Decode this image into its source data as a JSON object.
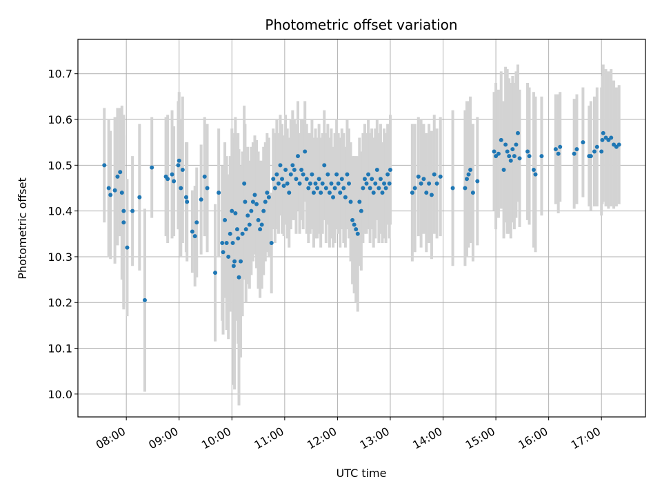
{
  "chart_data": {
    "type": "scatter",
    "title": "Photometric offset variation",
    "xlabel": "UTC time",
    "ylabel": "Photometric offset",
    "x_tick_labels": [
      "08:00",
      "09:00",
      "10:00",
      "11:00",
      "12:00",
      "13:00",
      "14:00",
      "15:00",
      "16:00",
      "17:00"
    ],
    "y_ticks": [
      10.0,
      10.1,
      10.2,
      10.3,
      10.4,
      10.5,
      10.6,
      10.7
    ],
    "y_tick_labels": [
      "10.0",
      "10.1",
      "10.2",
      "10.3",
      "10.4",
      "10.5",
      "10.6",
      "10.7"
    ],
    "xlim": [
      "07:05",
      "17:50"
    ],
    "ylim": [
      9.95,
      10.775
    ],
    "grid": true,
    "colors": {
      "points": "#1f77b4",
      "errorbars": "#d3d3d3",
      "grid": "#b0b0b0"
    },
    "series": [
      {
        "points": [
          {
            "x": "07:35",
            "y": 10.5,
            "err": 0.125
          },
          {
            "x": "07:40",
            "y": 10.45,
            "err": 0.15
          },
          {
            "x": "07:42",
            "y": 10.435,
            "err": 0.14
          },
          {
            "x": "07:47",
            "y": 10.445,
            "err": 0.16
          },
          {
            "x": "07:50",
            "y": 10.475,
            "err": 0.15
          },
          {
            "x": "07:53",
            "y": 10.485,
            "err": 0.14
          },
          {
            "x": "07:55",
            "y": 10.44,
            "err": 0.19
          },
          {
            "x": "07:57",
            "y": 10.4,
            "err": 0.21
          },
          {
            "x": "07:57",
            "y": 10.375,
            "err": 0.19
          },
          {
            "x": "08:01",
            "y": 10.32,
            "err": 0.15
          },
          {
            "x": "08:07",
            "y": 10.4,
            "err": 0.12
          },
          {
            "x": "08:15",
            "y": 10.43,
            "err": 0.16
          },
          {
            "x": "08:21",
            "y": 10.205,
            "err": 0.2
          },
          {
            "x": "08:29",
            "y": 10.495,
            "err": 0.11
          },
          {
            "x": "08:45",
            "y": 10.475,
            "err": 0.13
          },
          {
            "x": "08:47",
            "y": 10.47,
            "err": 0.14
          },
          {
            "x": "08:52",
            "y": 10.48,
            "err": 0.14
          },
          {
            "x": "08:54",
            "y": 10.465,
            "err": 0.12
          },
          {
            "x": "08:59",
            "y": 10.5,
            "err": 0.14
          },
          {
            "x": "09:00",
            "y": 10.51,
            "err": 0.15
          },
          {
            "x": "09:02",
            "y": 10.45,
            "err": 0.15
          },
          {
            "x": "09:04",
            "y": 10.49,
            "err": 0.16
          },
          {
            "x": "09:08",
            "y": 10.43,
            "err": 0.12
          },
          {
            "x": "09:09",
            "y": 10.42,
            "err": 0.13
          },
          {
            "x": "09:15",
            "y": 10.355,
            "err": 0.09
          },
          {
            "x": "09:18",
            "y": 10.345,
            "err": 0.11
          },
          {
            "x": "09:20",
            "y": 10.375,
            "err": 0.12
          },
          {
            "x": "09:25",
            "y": 10.425,
            "err": 0.12
          },
          {
            "x": "09:29",
            "y": 10.475,
            "err": 0.13
          },
          {
            "x": "09:32",
            "y": 10.45,
            "err": 0.14
          },
          {
            "x": "09:41",
            "y": 10.265,
            "err": 0.15
          },
          {
            "x": "09:45",
            "y": 10.44,
            "err": 0.14
          },
          {
            "x": "09:49",
            "y": 10.33,
            "err": 0.17
          },
          {
            "x": "09:50",
            "y": 10.31,
            "err": 0.18
          },
          {
            "x": "09:52",
            "y": 10.38,
            "err": 0.17
          },
          {
            "x": "09:54",
            "y": 10.33,
            "err": 0.19
          },
          {
            "x": "09:56",
            "y": 10.3,
            "err": 0.18
          },
          {
            "x": "09:58",
            "y": 10.35,
            "err": 0.17
          },
          {
            "x": "10:00",
            "y": 10.4,
            "err": 0.18
          },
          {
            "x": "10:01",
            "y": 10.33,
            "err": 0.23
          },
          {
            "x": "10:02",
            "y": 10.28,
            "err": 0.26
          },
          {
            "x": "10:03",
            "y": 10.29,
            "err": 0.28
          },
          {
            "x": "10:04",
            "y": 10.395,
            "err": 0.21
          },
          {
            "x": "10:06",
            "y": 10.36,
            "err": 0.2
          },
          {
            "x": "10:07",
            "y": 10.34,
            "err": 0.23
          },
          {
            "x": "10:08",
            "y": 10.255,
            "err": 0.28
          },
          {
            "x": "10:10",
            "y": 10.29,
            "err": 0.21
          },
          {
            "x": "10:12",
            "y": 10.35,
            "err": 0.18
          },
          {
            "x": "10:14",
            "y": 10.46,
            "err": 0.17
          },
          {
            "x": "10:15",
            "y": 10.42,
            "err": 0.17
          },
          {
            "x": "10:16",
            "y": 10.36,
            "err": 0.16
          },
          {
            "x": "10:18",
            "y": 10.39,
            "err": 0.15
          },
          {
            "x": "10:20",
            "y": 10.37,
            "err": 0.14
          },
          {
            "x": "10:22",
            "y": 10.4,
            "err": 0.14
          },
          {
            "x": "10:24",
            "y": 10.42,
            "err": 0.13
          },
          {
            "x": "10:26",
            "y": 10.435,
            "err": 0.13
          },
          {
            "x": "10:28",
            "y": 10.415,
            "err": 0.14
          },
          {
            "x": "10:30",
            "y": 10.38,
            "err": 0.15
          },
          {
            "x": "10:32",
            "y": 10.36,
            "err": 0.15
          },
          {
            "x": "10:34",
            "y": 10.37,
            "err": 0.14
          },
          {
            "x": "10:36",
            "y": 10.4,
            "err": 0.14
          },
          {
            "x": "10:38",
            "y": 10.42,
            "err": 0.13
          },
          {
            "x": "10:40",
            "y": 10.44,
            "err": 0.13
          },
          {
            "x": "10:42",
            "y": 10.43,
            "err": 0.13
          },
          {
            "x": "10:45",
            "y": 10.33,
            "err": 0.11
          },
          {
            "x": "10:47",
            "y": 10.47,
            "err": 0.11
          },
          {
            "x": "10:49",
            "y": 10.45,
            "err": 0.12
          },
          {
            "x": "10:51",
            "y": 10.48,
            "err": 0.12
          },
          {
            "x": "10:53",
            "y": 10.46,
            "err": 0.11
          },
          {
            "x": "10:55",
            "y": 10.5,
            "err": 0.11
          },
          {
            "x": "10:57",
            "y": 10.47,
            "err": 0.12
          },
          {
            "x": "10:59",
            "y": 10.455,
            "err": 0.11
          },
          {
            "x": "11:01",
            "y": 10.49,
            "err": 0.12
          },
          {
            "x": "11:03",
            "y": 10.46,
            "err": 0.12
          },
          {
            "x": "11:05",
            "y": 10.44,
            "err": 0.12
          },
          {
            "x": "11:07",
            "y": 10.48,
            "err": 0.12
          },
          {
            "x": "11:09",
            "y": 10.5,
            "err": 0.12
          },
          {
            "x": "11:11",
            "y": 10.49,
            "err": 0.11
          },
          {
            "x": "11:13",
            "y": 10.47,
            "err": 0.12
          },
          {
            "x": "11:15",
            "y": 10.52,
            "err": 0.12
          },
          {
            "x": "11:17",
            "y": 10.46,
            "err": 0.11
          },
          {
            "x": "11:19",
            "y": 10.49,
            "err": 0.11
          },
          {
            "x": "11:21",
            "y": 10.48,
            "err": 0.12
          },
          {
            "x": "11:23",
            "y": 10.53,
            "err": 0.11
          },
          {
            "x": "11:25",
            "y": 10.47,
            "err": 0.12
          },
          {
            "x": "11:27",
            "y": 10.45,
            "err": 0.12
          },
          {
            "x": "11:29",
            "y": 10.46,
            "err": 0.11
          },
          {
            "x": "11:31",
            "y": 10.48,
            "err": 0.12
          },
          {
            "x": "11:33",
            "y": 10.44,
            "err": 0.12
          },
          {
            "x": "11:35",
            "y": 10.46,
            "err": 0.12
          },
          {
            "x": "11:37",
            "y": 10.45,
            "err": 0.11
          },
          {
            "x": "11:39",
            "y": 10.47,
            "err": 0.12
          },
          {
            "x": "11:41",
            "y": 10.44,
            "err": 0.12
          },
          {
            "x": "11:43",
            "y": 10.46,
            "err": 0.11
          },
          {
            "x": "11:45",
            "y": 10.5,
            "err": 0.12
          },
          {
            "x": "11:47",
            "y": 10.45,
            "err": 0.12
          },
          {
            "x": "11:49",
            "y": 10.48,
            "err": 0.11
          },
          {
            "x": "11:51",
            "y": 10.44,
            "err": 0.12
          },
          {
            "x": "11:53",
            "y": 10.46,
            "err": 0.12
          },
          {
            "x": "11:55",
            "y": 10.43,
            "err": 0.11
          },
          {
            "x": "11:57",
            "y": 10.45,
            "err": 0.12
          },
          {
            "x": "11:59",
            "y": 10.48,
            "err": 0.12
          },
          {
            "x": "12:01",
            "y": 10.46,
            "err": 0.11
          },
          {
            "x": "12:03",
            "y": 10.44,
            "err": 0.12
          },
          {
            "x": "12:05",
            "y": 10.47,
            "err": 0.11
          },
          {
            "x": "12:07",
            "y": 10.45,
            "err": 0.12
          },
          {
            "x": "12:09",
            "y": 10.43,
            "err": 0.11
          },
          {
            "x": "12:11",
            "y": 10.48,
            "err": 0.12
          },
          {
            "x": "12:13",
            "y": 10.46,
            "err": 0.12
          },
          {
            "x": "12:15",
            "y": 10.42,
            "err": 0.13
          },
          {
            "x": "12:17",
            "y": 10.38,
            "err": 0.14
          },
          {
            "x": "12:19",
            "y": 10.37,
            "err": 0.15
          },
          {
            "x": "12:21",
            "y": 10.36,
            "err": 0.16
          },
          {
            "x": "12:23",
            "y": 10.35,
            "err": 0.17
          },
          {
            "x": "12:25",
            "y": 10.42,
            "err": 0.14
          },
          {
            "x": "12:27",
            "y": 10.4,
            "err": 0.13
          },
          {
            "x": "12:29",
            "y": 10.45,
            "err": 0.12
          },
          {
            "x": "12:31",
            "y": 10.47,
            "err": 0.12
          },
          {
            "x": "12:33",
            "y": 10.46,
            "err": 0.11
          },
          {
            "x": "12:35",
            "y": 10.48,
            "err": 0.12
          },
          {
            "x": "12:37",
            "y": 10.45,
            "err": 0.12
          },
          {
            "x": "12:39",
            "y": 10.47,
            "err": 0.11
          },
          {
            "x": "12:41",
            "y": 10.44,
            "err": 0.12
          },
          {
            "x": "12:43",
            "y": 10.46,
            "err": 0.12
          },
          {
            "x": "12:45",
            "y": 10.49,
            "err": 0.11
          },
          {
            "x": "12:47",
            "y": 10.45,
            "err": 0.12
          },
          {
            "x": "12:49",
            "y": 10.47,
            "err": 0.12
          },
          {
            "x": "12:51",
            "y": 10.44,
            "err": 0.11
          },
          {
            "x": "12:53",
            "y": 10.46,
            "err": 0.12
          },
          {
            "x": "12:55",
            "y": 10.45,
            "err": 0.12
          },
          {
            "x": "12:57",
            "y": 10.48,
            "err": 0.11
          },
          {
            "x": "12:59",
            "y": 10.46,
            "err": 0.12
          },
          {
            "x": "13:00",
            "y": 10.49,
            "err": 0.12
          },
          {
            "x": "13:25",
            "y": 10.44,
            "err": 0.15
          },
          {
            "x": "13:28",
            "y": 10.45,
            "err": 0.14
          },
          {
            "x": "13:32",
            "y": 10.475,
            "err": 0.13
          },
          {
            "x": "13:35",
            "y": 10.46,
            "err": 0.14
          },
          {
            "x": "13:38",
            "y": 10.47,
            "err": 0.12
          },
          {
            "x": "13:41",
            "y": 10.44,
            "err": 0.13
          },
          {
            "x": "13:44",
            "y": 10.46,
            "err": 0.13
          },
          {
            "x": "13:47",
            "y": 10.435,
            "err": 0.14
          },
          {
            "x": "13:50",
            "y": 10.48,
            "err": 0.13
          },
          {
            "x": "13:53",
            "y": 10.46,
            "err": 0.12
          },
          {
            "x": "13:57",
            "y": 10.475,
            "err": 0.13
          },
          {
            "x": "14:11",
            "y": 10.45,
            "err": 0.17
          },
          {
            "x": "14:25",
            "y": 10.45,
            "err": 0.17
          },
          {
            "x": "14:27",
            "y": 10.47,
            "err": 0.17
          },
          {
            "x": "14:29",
            "y": 10.48,
            "err": 0.16
          },
          {
            "x": "14:31",
            "y": 10.49,
            "err": 0.16
          },
          {
            "x": "14:34",
            "y": 10.44,
            "err": 0.15
          },
          {
            "x": "14:39",
            "y": 10.465,
            "err": 0.14
          },
          {
            "x": "14:58",
            "y": 10.53,
            "err": 0.13
          },
          {
            "x": "15:00",
            "y": 10.52,
            "err": 0.16
          },
          {
            "x": "15:03",
            "y": 10.525,
            "err": 0.14
          },
          {
            "x": "15:06",
            "y": 10.555,
            "err": 0.15
          },
          {
            "x": "15:09",
            "y": 10.49,
            "err": 0.15
          },
          {
            "x": "15:11",
            "y": 10.545,
            "err": 0.17
          },
          {
            "x": "15:13",
            "y": 10.53,
            "err": 0.18
          },
          {
            "x": "15:15",
            "y": 10.52,
            "err": 0.17
          },
          {
            "x": "15:17",
            "y": 10.51,
            "err": 0.17
          },
          {
            "x": "15:19",
            "y": 10.535,
            "err": 0.16
          },
          {
            "x": "15:21",
            "y": 10.52,
            "err": 0.16
          },
          {
            "x": "15:23",
            "y": 10.545,
            "err": 0.16
          },
          {
            "x": "15:25",
            "y": 10.57,
            "err": 0.15
          },
          {
            "x": "15:27",
            "y": 10.515,
            "err": 0.15
          },
          {
            "x": "15:36",
            "y": 10.53,
            "err": 0.15
          },
          {
            "x": "15:38",
            "y": 10.52,
            "err": 0.15
          },
          {
            "x": "15:43",
            "y": 10.49,
            "err": 0.17
          },
          {
            "x": "15:45",
            "y": 10.48,
            "err": 0.17
          },
          {
            "x": "15:52",
            "y": 10.52,
            "err": 0.13
          },
          {
            "x": "16:08",
            "y": 10.535,
            "err": 0.12
          },
          {
            "x": "16:11",
            "y": 10.525,
            "err": 0.13
          },
          {
            "x": "16:13",
            "y": 10.54,
            "err": 0.12
          },
          {
            "x": "16:29",
            "y": 10.525,
            "err": 0.12
          },
          {
            "x": "16:32",
            "y": 10.535,
            "err": 0.12
          },
          {
            "x": "16:39",
            "y": 10.55,
            "err": 0.12
          },
          {
            "x": "16:46",
            "y": 10.52,
            "err": 0.11
          },
          {
            "x": "16:48",
            "y": 10.52,
            "err": 0.12
          },
          {
            "x": "16:52",
            "y": 10.53,
            "err": 0.12
          },
          {
            "x": "16:55",
            "y": 10.54,
            "err": 0.13
          },
          {
            "x": "17:00",
            "y": 10.53,
            "err": 0.14
          },
          {
            "x": "17:01",
            "y": 10.555,
            "err": 0.14
          },
          {
            "x": "17:02",
            "y": 10.57,
            "err": 0.15
          },
          {
            "x": "17:05",
            "y": 10.56,
            "err": 0.15
          },
          {
            "x": "17:08",
            "y": 10.555,
            "err": 0.15
          },
          {
            "x": "17:11",
            "y": 10.56,
            "err": 0.15
          },
          {
            "x": "17:14",
            "y": 10.545,
            "err": 0.14
          },
          {
            "x": "17:17",
            "y": 10.54,
            "err": 0.13
          },
          {
            "x": "17:20",
            "y": 10.545,
            "err": 0.13
          }
        ]
      }
    ]
  }
}
